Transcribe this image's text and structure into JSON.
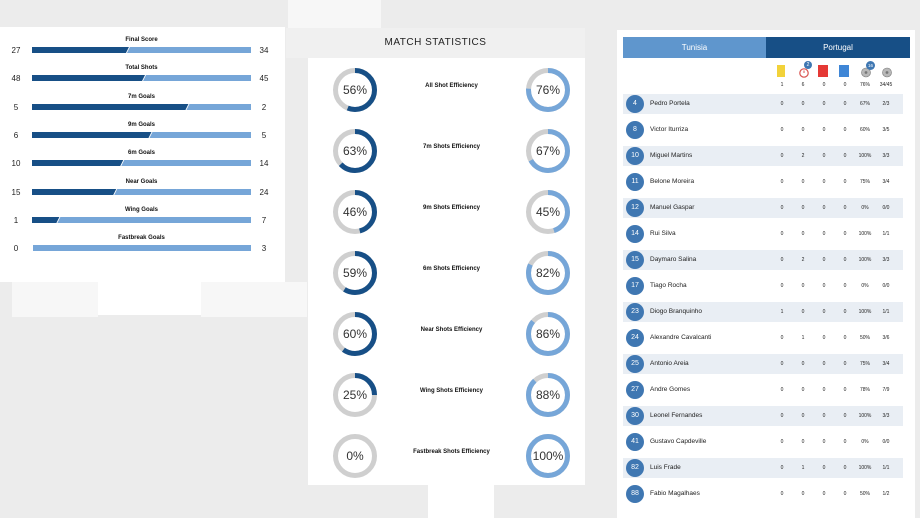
{
  "comparison": {
    "rows": [
      {
        "label": "Final Score",
        "left": "27",
        "right": "34",
        "lv": 27,
        "rv": 34
      },
      {
        "label": "Total Shots",
        "left": "48",
        "right": "45",
        "lv": 48,
        "rv": 45
      },
      {
        "label": "7m Goals",
        "left": "5",
        "right": "2",
        "lv": 5,
        "rv": 2
      },
      {
        "label": "9m Goals",
        "left": "6",
        "right": "5",
        "lv": 6,
        "rv": 5
      },
      {
        "label": "6m Goals",
        "left": "10",
        "right": "14",
        "lv": 10,
        "rv": 14
      },
      {
        "label": "Near Goals",
        "left": "15",
        "right": "24",
        "lv": 15,
        "rv": 24
      },
      {
        "label": "Wing Goals",
        "left": "1",
        "right": "7",
        "lv": 1,
        "rv": 7
      },
      {
        "label": "Fastbreak Goals",
        "left": "0",
        "right": "3",
        "lv": 0,
        "rv": 3
      }
    ]
  },
  "stats": {
    "title": "MATCH STATISTICS",
    "rows": [
      {
        "label": "All Shot Efficiency",
        "left": "56%",
        "right": "76%",
        "lp": 56,
        "rp": 76
      },
      {
        "label": "7m Shots Efficiency",
        "left": "63%",
        "right": "67%",
        "lp": 63,
        "rp": 67
      },
      {
        "label": "9m Shots Efficiency",
        "left": "46%",
        "right": "45%",
        "lp": 46,
        "rp": 45
      },
      {
        "label": "6m Shots Efficiency",
        "left": "59%",
        "right": "82%",
        "lp": 59,
        "rp": 82
      },
      {
        "label": "Near Shots Efficiency",
        "left": "60%",
        "right": "86%",
        "lp": 60,
        "rp": 86
      },
      {
        "label": "Wing Shots Efficiency",
        "left": "25%",
        "right": "88%",
        "lp": 25,
        "rp": 88
      },
      {
        "label": "Fastbreak Shots Efficiency",
        "left": "0%",
        "right": "100%",
        "lp": 0,
        "rp": 100
      }
    ]
  },
  "roster": {
    "tabs": [
      "Tunisia",
      "Portugal"
    ],
    "header_badges": [
      "2",
      "16"
    ],
    "header_values": [
      "1",
      "6",
      "0",
      "0",
      "76%",
      "34/45"
    ],
    "players": [
      {
        "num": "4",
        "name": "Pedro Portela",
        "v": [
          "0",
          "0",
          "0",
          "0",
          "67%",
          "2/3"
        ]
      },
      {
        "num": "8",
        "name": "Victor Iturriza",
        "v": [
          "0",
          "0",
          "0",
          "0",
          "60%",
          "3/5"
        ]
      },
      {
        "num": "10",
        "name": "Miguel Martins",
        "v": [
          "0",
          "2",
          "0",
          "0",
          "100%",
          "3/3"
        ]
      },
      {
        "num": "11",
        "name": "Belone Moreira",
        "v": [
          "0",
          "0",
          "0",
          "0",
          "75%",
          "3/4"
        ]
      },
      {
        "num": "12",
        "name": "Manuel Gaspar",
        "v": [
          "0",
          "0",
          "0",
          "0",
          "0%",
          "0/0"
        ]
      },
      {
        "num": "14",
        "name": "Rui Silva",
        "v": [
          "0",
          "0",
          "0",
          "0",
          "100%",
          "1/1"
        ]
      },
      {
        "num": "15",
        "name": "Daymaro Salina",
        "v": [
          "0",
          "2",
          "0",
          "0",
          "100%",
          "3/3"
        ]
      },
      {
        "num": "17",
        "name": "Tiago Rocha",
        "v": [
          "0",
          "0",
          "0",
          "0",
          "0%",
          "0/0"
        ]
      },
      {
        "num": "23",
        "name": "Diogo Branquinho",
        "v": [
          "1",
          "0",
          "0",
          "0",
          "100%",
          "1/1"
        ]
      },
      {
        "num": "24",
        "name": "Alexandre Cavalcanti",
        "v": [
          "0",
          "1",
          "0",
          "0",
          "50%",
          "3/6"
        ]
      },
      {
        "num": "25",
        "name": "Antonio Areia",
        "v": [
          "0",
          "0",
          "0",
          "0",
          "75%",
          "3/4"
        ]
      },
      {
        "num": "27",
        "name": "Andre Gomes",
        "v": [
          "0",
          "0",
          "0",
          "0",
          "78%",
          "7/9"
        ]
      },
      {
        "num": "30",
        "name": "Leonel Fernandes",
        "v": [
          "0",
          "0",
          "0",
          "0",
          "100%",
          "3/3"
        ]
      },
      {
        "num": "41",
        "name": "Gustavo Capdeville",
        "v": [
          "0",
          "0",
          "0",
          "0",
          "0%",
          "0/0"
        ]
      },
      {
        "num": "82",
        "name": "Luis Frade",
        "v": [
          "0",
          "1",
          "0",
          "0",
          "100%",
          "1/1"
        ]
      },
      {
        "num": "88",
        "name": "Fabio Magalhaes",
        "v": [
          "0",
          "0",
          "0",
          "0",
          "50%",
          "1/2"
        ]
      }
    ]
  },
  "colors": {
    "dark": "#174f86",
    "light": "#76a6d8",
    "ring_bg": "#cfcfcf",
    "yellow": "#f2d23a",
    "red": "#e53935",
    "blue_card": "#3f86d6"
  }
}
